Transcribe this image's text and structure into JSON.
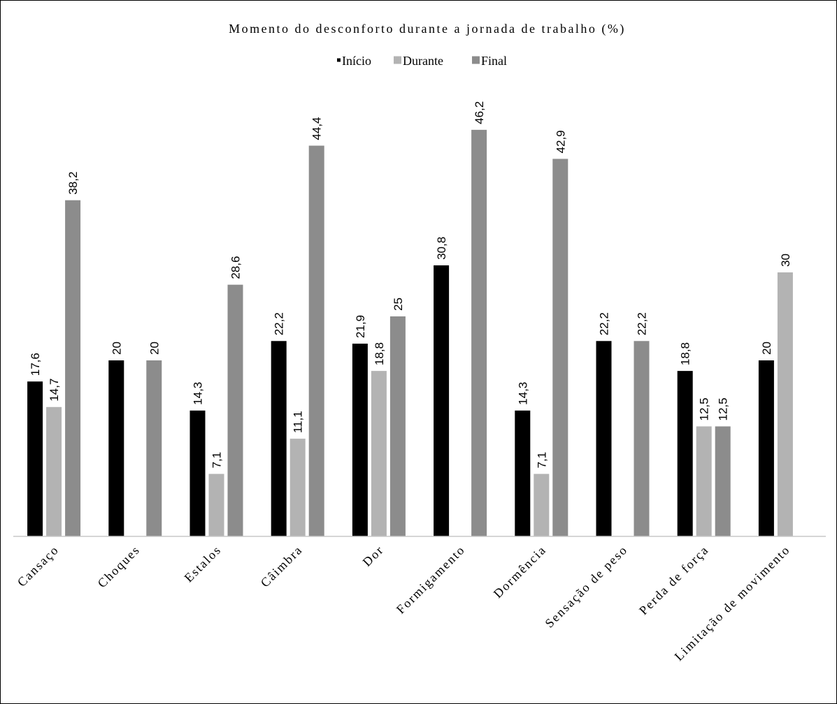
{
  "chart_data": {
    "type": "bar",
    "title": "Momento do desconforto durante a jornada de trabalho (%)",
    "xlabel": "",
    "ylabel": "",
    "ylim": [
      0,
      52
    ],
    "grid": false,
    "legend_position": "top-center",
    "categories": [
      "Cansaço",
      "Choques",
      "Estalos",
      "Câimbra",
      "Dor",
      "Formigamento",
      "Dormência",
      "Sensação de peso",
      "Perda de força",
      "Limitação de movimento"
    ],
    "series": [
      {
        "name": "Início",
        "color": "#000000",
        "values": [
          17.6,
          20,
          14.3,
          22.2,
          21.9,
          30.8,
          14.3,
          22.2,
          18.8,
          20
        ]
      },
      {
        "name": "Durante",
        "color": "#b3b3b3",
        "values": [
          14.7,
          null,
          7.1,
          11.1,
          18.8,
          null,
          7.1,
          null,
          12.5,
          30
        ]
      },
      {
        "name": "Final",
        "color": "#8c8c8c",
        "values": [
          38.2,
          20,
          28.6,
          44.4,
          25,
          46.2,
          42.9,
          22.2,
          12.5,
          null
        ]
      }
    ],
    "data_labels": [
      [
        "17,6",
        "20",
        "14,3",
        "22,2",
        "21,9",
        "30,8",
        "14,3",
        "22,2",
        "18,8",
        "20"
      ],
      [
        "14,7",
        null,
        "7,1",
        "11,1",
        "18,8",
        null,
        "7,1",
        null,
        "12,5",
        "30"
      ],
      [
        "38,2",
        "20",
        "28,6",
        "44,4",
        "25",
        "46,2",
        "42,9",
        "22,2",
        "12,5",
        null
      ]
    ]
  }
}
